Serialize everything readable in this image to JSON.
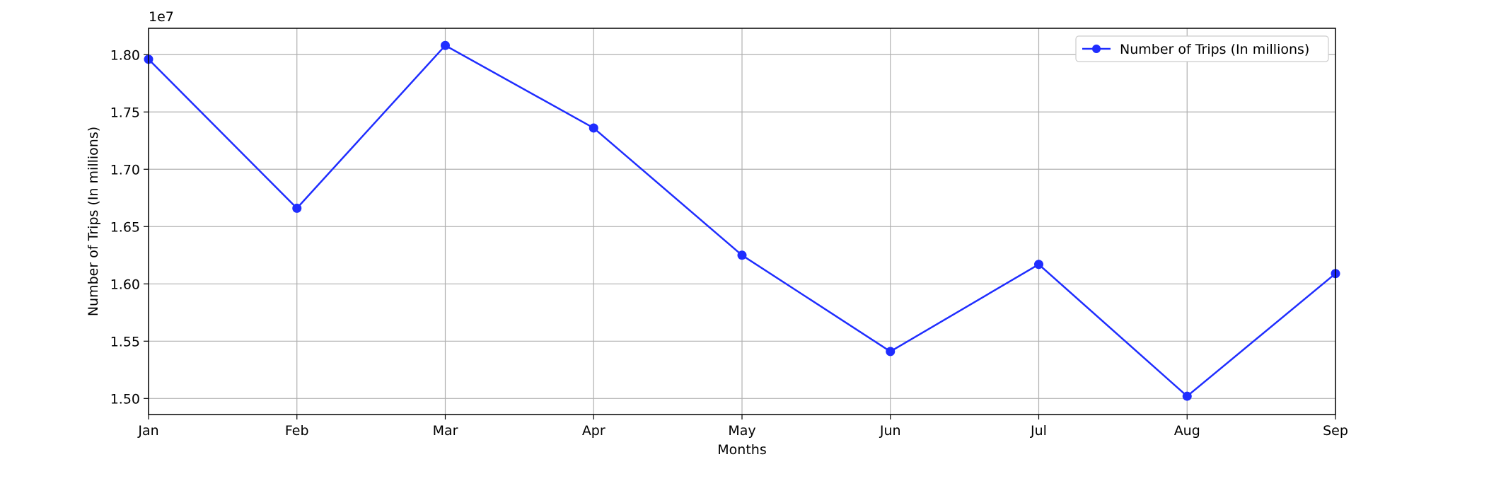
{
  "chart_data": {
    "type": "line",
    "categories": [
      "Jan",
      "Feb",
      "Mar",
      "Apr",
      "May",
      "Jun",
      "Jul",
      "Aug",
      "Sep"
    ],
    "series": [
      {
        "name": "Number of Trips (In millions)",
        "color": "#1f2dff",
        "marker": "circle",
        "values": [
          17960000,
          16660000,
          18080000,
          17360000,
          16250000,
          15410000,
          16170000,
          15020000,
          16090000
        ]
      }
    ],
    "xlabel": "Months",
    "ylabel": "Number of Trips (In millions)",
    "offset_label": "1e7",
    "ylim": [
      14860000,
      18230000
    ],
    "yticks": [
      15000000,
      15500000,
      16000000,
      16500000,
      17000000,
      17500000,
      18000000
    ],
    "ytick_labels": [
      "1.50",
      "1.55",
      "1.60",
      "1.65",
      "1.70",
      "1.75",
      "1.80"
    ],
    "grid": true,
    "legend_position": "top-right"
  }
}
